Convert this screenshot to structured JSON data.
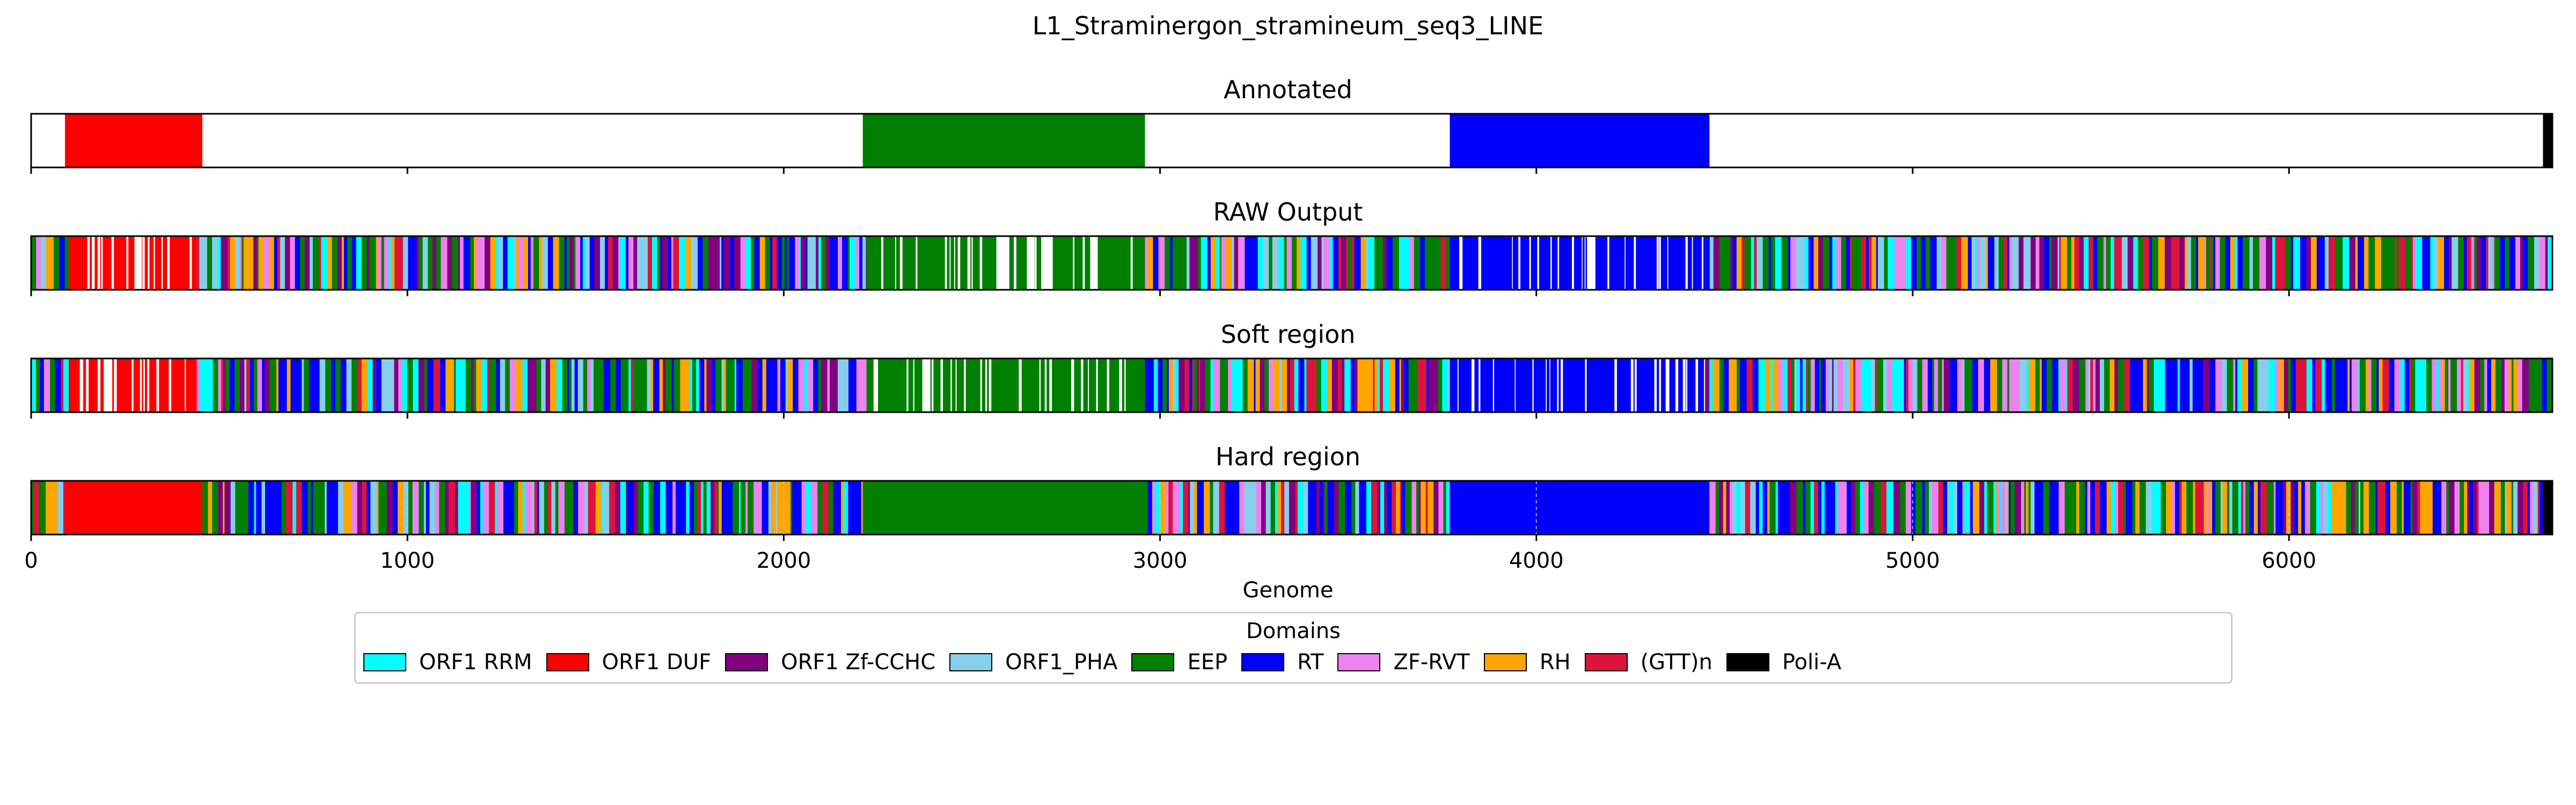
{
  "figure": {
    "title": "L1_Straminergon_stramineum_seq3_LINE"
  },
  "chart_data": {
    "type": "bar",
    "xlabel": "Genome",
    "xlim": [
      0,
      6700
    ],
    "xticks": [
      0,
      1000,
      2000,
      3000,
      4000,
      5000,
      6000
    ],
    "xtick_labels": [
      "0",
      "1000",
      "2000",
      "3000",
      "4000",
      "5000",
      "6000"
    ],
    "tracks": [
      {
        "title": "Annotated",
        "segments": [
          {
            "start": 90,
            "end": 455,
            "domain": "ORF1 DUF"
          },
          {
            "start": 2210,
            "end": 2960,
            "domain": "EEP"
          },
          {
            "start": 3770,
            "end": 4460,
            "domain": "RT"
          },
          {
            "start": 6675,
            "end": 6700,
            "domain": "Poli-A"
          }
        ]
      },
      {
        "title": "RAW Output",
        "regions": [
          {
            "start": 0,
            "end": 100,
            "domain": "mixed"
          },
          {
            "start": 100,
            "end": 440,
            "domain": "ORF1 DUF",
            "gaps": true
          },
          {
            "start": 440,
            "end": 2220,
            "domain": "mixed"
          },
          {
            "start": 2220,
            "end": 2960,
            "domain": "EEP",
            "gaps": true
          },
          {
            "start": 2960,
            "end": 3770,
            "domain": "mixed"
          },
          {
            "start": 3770,
            "end": 4450,
            "domain": "RT",
            "gaps": true
          },
          {
            "start": 4450,
            "end": 6700,
            "domain": "mixed"
          }
        ]
      },
      {
        "title": "Soft region",
        "regions": [
          {
            "start": 0,
            "end": 100,
            "domain": "mixed"
          },
          {
            "start": 100,
            "end": 440,
            "domain": "ORF1 DUF",
            "gaps": true
          },
          {
            "start": 440,
            "end": 2220,
            "domain": "mixed"
          },
          {
            "start": 2220,
            "end": 2960,
            "domain": "EEP",
            "gaps": true
          },
          {
            "start": 2960,
            "end": 3770,
            "domain": "mixed"
          },
          {
            "start": 3770,
            "end": 4450,
            "domain": "RT",
            "gaps": true
          },
          {
            "start": 4450,
            "end": 6700,
            "domain": "mixed"
          }
        ]
      },
      {
        "title": "Hard region",
        "regions": [
          {
            "start": 0,
            "end": 90,
            "domain": "mixed"
          },
          {
            "start": 90,
            "end": 455,
            "domain": "ORF1 DUF"
          },
          {
            "start": 455,
            "end": 2210,
            "domain": "mixed"
          },
          {
            "start": 2210,
            "end": 2960,
            "domain": "EEP"
          },
          {
            "start": 2960,
            "end": 3770,
            "domain": "mixed"
          },
          {
            "start": 3770,
            "end": 4460,
            "domain": "RT"
          },
          {
            "start": 4460,
            "end": 6675,
            "domain": "mixed"
          },
          {
            "start": 6675,
            "end": 6700,
            "domain": "Poli-A"
          }
        ]
      }
    ],
    "legend": {
      "title": "Domains",
      "placement": "bottom-center",
      "entries": [
        {
          "name": "ORF1 RRM",
          "color": "#00ffff"
        },
        {
          "name": "ORF1 DUF",
          "color": "#ff0000"
        },
        {
          "name": "ORF1 Zf-CCHC",
          "color": "#800080"
        },
        {
          "name": "ORF1_PHA",
          "color": "#87ceeb"
        },
        {
          "name": "EEP",
          "color": "#008000"
        },
        {
          "name": "RT",
          "color": "#0000ff"
        },
        {
          "name": "ZF-RVT",
          "color": "#ee82ee"
        },
        {
          "name": "RH",
          "color": "#ffa500"
        },
        {
          "name": "(GTT)n",
          "color": "#dc143c"
        },
        {
          "name": "Poli-A",
          "color": "#000000"
        }
      ]
    }
  }
}
